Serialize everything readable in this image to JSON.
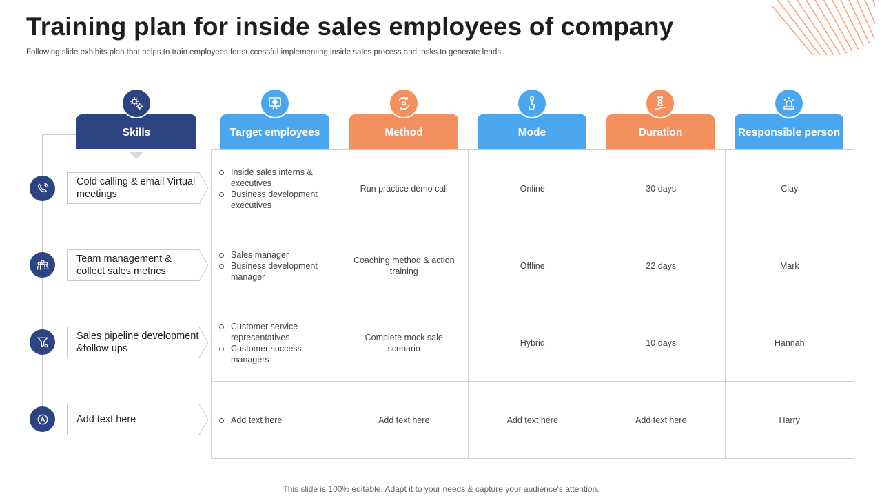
{
  "title": "Training plan for inside sales employees of company",
  "subtitle": "Following slide exhibits plan that helps to train employees for successful implementing inside sales process and tasks to generate leads.",
  "colors": {
    "navy": "#2c4482",
    "blue": "#4aa6ef",
    "orange": "#f4905e",
    "decor": "#f4a77e"
  },
  "headers": [
    {
      "label": "Skills",
      "icon": "gears-icon",
      "color": "navy"
    },
    {
      "label": "Target employees",
      "icon": "presentation-target-icon",
      "color": "blue"
    },
    {
      "label": "Method",
      "icon": "cycle-arrows-icon",
      "color": "orange"
    },
    {
      "label": "Mode",
      "icon": "hand-pointer-icon",
      "color": "blue"
    },
    {
      "label": "Duration",
      "icon": "hourglass-hand-icon",
      "color": "orange"
    },
    {
      "label": "Responsible person",
      "icon": "siren-icon",
      "color": "blue"
    }
  ],
  "skills": [
    {
      "label": "Cold calling & email Virtual meetings",
      "icon": "phone-hand-icon"
    },
    {
      "label": "Team management & collect sales metrics",
      "icon": "team-icon"
    },
    {
      "label": "Sales pipeline development &follow ups",
      "icon": "funnel-gear-icon"
    },
    {
      "label": "Add text here",
      "icon": "translate-icon"
    }
  ],
  "rows": [
    {
      "targets": [
        "Inside sales interns & executives",
        "Business development executives"
      ],
      "method": "Run practice demo call",
      "mode": "Online",
      "duration": "30 days",
      "person": "Clay"
    },
    {
      "targets": [
        "Sales manager",
        "Business development manager"
      ],
      "method": "Coaching method & action training",
      "mode": "Offline",
      "duration": "22 days",
      "person": "Mark"
    },
    {
      "targets": [
        "Customer service representatives",
        "Customer success managers"
      ],
      "method": "Complete mock sale scenario",
      "mode": "Hybrid",
      "duration": "10 days",
      "person": "Hannah"
    },
    {
      "targets": [
        "Add text here"
      ],
      "method": "Add text here",
      "mode": "Add text here",
      "duration": "Add text here",
      "person": "Harry"
    }
  ],
  "footer": "This slide is 100% editable. Adapt it to your needs & capture your audience's attention."
}
